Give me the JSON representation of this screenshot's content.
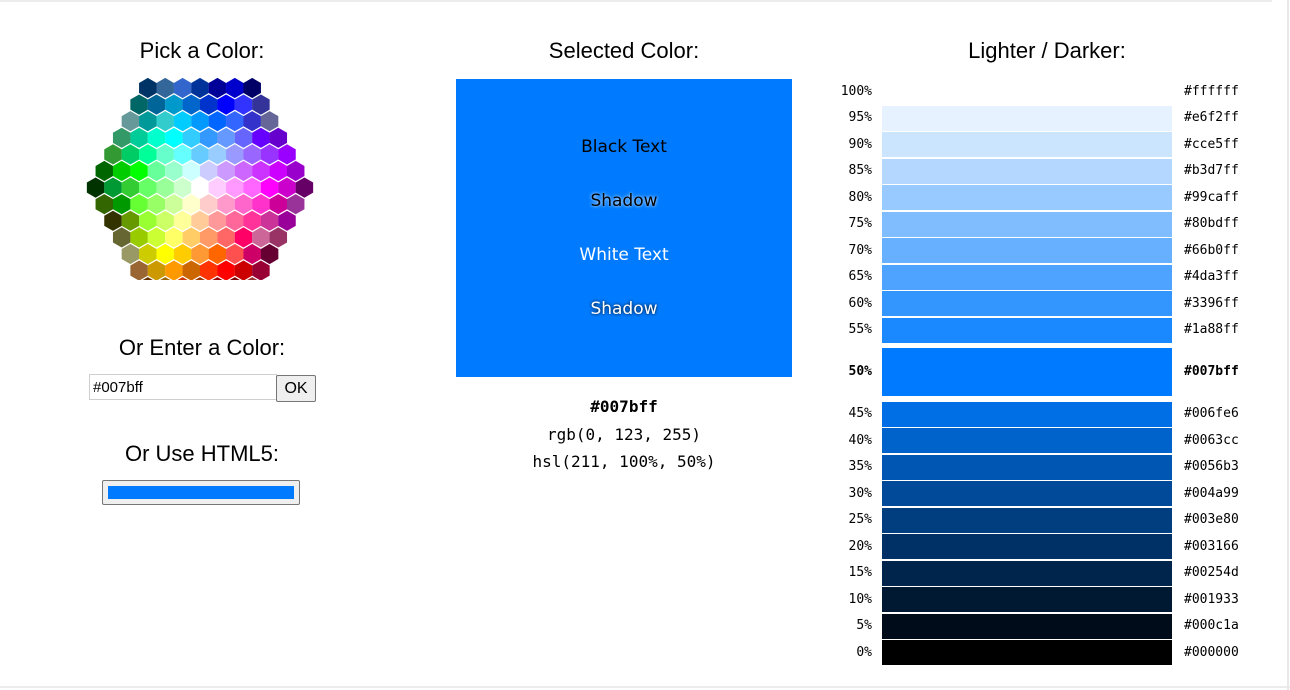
{
  "picker": {
    "title": "Pick a Color:",
    "enter_title": "Or Enter a Color:",
    "input_value": "#007bff",
    "ok_label": "OK",
    "html5_title": "Or Use HTML5:",
    "html5_value": "#007bff",
    "hex_rows": [
      [
        "#003366",
        "#336699",
        "#3366cc",
        "#003399",
        "#000099",
        "#0000cc",
        "#000066"
      ],
      [
        "#006666",
        "#006699",
        "#0099cc",
        "#0066cc",
        "#0033cc",
        "#0000ff",
        "#3333ff",
        "#333399"
      ],
      [
        "#669999",
        "#009999",
        "#33cccc",
        "#00ccff",
        "#0099ff",
        "#0066ff",
        "#3366ff",
        "#3333cc",
        "#666699"
      ],
      [
        "#339966",
        "#00cc99",
        "#00ffcc",
        "#00ffff",
        "#33ccff",
        "#3399ff",
        "#6699ff",
        "#6666ff",
        "#6600ff",
        "#6600cc"
      ],
      [
        "#339933",
        "#00cc66",
        "#00ff99",
        "#66ffcc",
        "#66ffff",
        "#66ccff",
        "#99ccff",
        "#9999ff",
        "#9966ff",
        "#9933ff",
        "#9900ff"
      ],
      [
        "#006600",
        "#00cc00",
        "#00ff00",
        "#66ff99",
        "#99ffcc",
        "#ccffff",
        "#ccccff",
        "#cc99ff",
        "#cc66ff",
        "#cc33ff",
        "#cc00ff",
        "#9900cc"
      ],
      [
        "#003300",
        "#009933",
        "#33cc33",
        "#66ff66",
        "#99ff99",
        "#ccffcc",
        "#ffffff",
        "#ffccff",
        "#ff99ff",
        "#ff66ff",
        "#ff00ff",
        "#cc00cc",
        "#660066"
      ],
      [
        "#336600",
        "#009900",
        "#66ff33",
        "#99ff66",
        "#ccff99",
        "#ffffcc",
        "#ffcccc",
        "#ff99cc",
        "#ff66cc",
        "#ff33cc",
        "#cc0099",
        "#993399"
      ],
      [
        "#333300",
        "#669900",
        "#99ff33",
        "#ccff66",
        "#ffff99",
        "#ffcc99",
        "#ff9999",
        "#ff6699",
        "#ff3399",
        "#cc3399",
        "#990099"
      ],
      [
        "#666633",
        "#99cc00",
        "#ccff33",
        "#ffff66",
        "#ffcc66",
        "#ff9966",
        "#ff6666",
        "#ff0066",
        "#cc6699",
        "#993366"
      ],
      [
        "#999966",
        "#cccc00",
        "#ffff00",
        "#ffcc00",
        "#ff9933",
        "#ff6600",
        "#ff5050",
        "#cc0066",
        "#660033"
      ],
      [
        "#996633",
        "#cc9900",
        "#ff9900",
        "#cc6600",
        "#ff3300",
        "#ff0000",
        "#cc0000",
        "#990033"
      ],
      [
        "#663300",
        "#996600",
        "#cc3300",
        "#993300",
        "#990000",
        "#800000",
        "#993333"
      ]
    ]
  },
  "selected": {
    "title": "Selected Color:",
    "color": "#007bff",
    "black_text": "Black Text",
    "black_shadow": "Shadow",
    "white_text": "White Text",
    "white_shadow": "Shadow",
    "hex": "#007bff",
    "rgb": "rgb(0, 123, 255)",
    "hsl": "hsl(211, 100%, 50%)"
  },
  "shades": {
    "title": "Lighter / Darker:",
    "rows": [
      {
        "pct": "100%",
        "hex": "#ffffff"
      },
      {
        "pct": "95%",
        "hex": "#e6f2ff"
      },
      {
        "pct": "90%",
        "hex": "#cce5ff"
      },
      {
        "pct": "85%",
        "hex": "#b3d7ff"
      },
      {
        "pct": "80%",
        "hex": "#99caff"
      },
      {
        "pct": "75%",
        "hex": "#80bdff"
      },
      {
        "pct": "70%",
        "hex": "#66b0ff"
      },
      {
        "pct": "65%",
        "hex": "#4da3ff"
      },
      {
        "pct": "60%",
        "hex": "#3396ff"
      },
      {
        "pct": "55%",
        "hex": "#1a88ff"
      },
      {
        "pct": "50%",
        "hex": "#007bff",
        "selected": true
      },
      {
        "pct": "45%",
        "hex": "#006fe6"
      },
      {
        "pct": "40%",
        "hex": "#0063cc"
      },
      {
        "pct": "35%",
        "hex": "#0056b3"
      },
      {
        "pct": "30%",
        "hex": "#004a99"
      },
      {
        "pct": "25%",
        "hex": "#003e80"
      },
      {
        "pct": "20%",
        "hex": "#003166"
      },
      {
        "pct": "15%",
        "hex": "#00254d"
      },
      {
        "pct": "10%",
        "hex": "#001933"
      },
      {
        "pct": "5%",
        "hex": "#000c1a"
      },
      {
        "pct": "0%",
        "hex": "#000000"
      }
    ]
  }
}
